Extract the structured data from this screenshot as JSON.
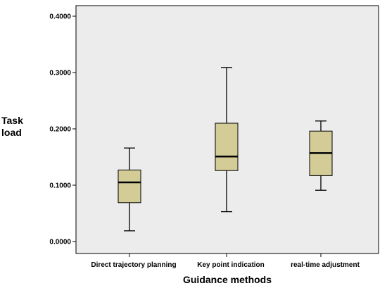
{
  "chart_data": {
    "type": "boxplot",
    "xlabel": "Guidance methods",
    "ylabel": [
      "Task",
      "load"
    ],
    "ylim": [
      -0.03,
      0.42
    ],
    "y_ticks": [
      0.0,
      0.1,
      0.2,
      0.3,
      0.4
    ],
    "y_tick_labels": [
      "0.0000",
      "0.1000",
      "0.2000",
      "0.3000",
      "0.4000"
    ],
    "grid": false,
    "categories": [
      "Direct trajectory planning",
      "Key point indication",
      "real-time adjustment"
    ],
    "boxes": [
      {
        "min": 0.019,
        "q1": 0.069,
        "median": 0.105,
        "q3": 0.127,
        "max": 0.166
      },
      {
        "min": 0.053,
        "q1": 0.126,
        "median": 0.151,
        "q3": 0.21,
        "max": 0.309
      },
      {
        "min": 0.091,
        "q1": 0.117,
        "median": 0.157,
        "q3": 0.196,
        "max": 0.214
      }
    ],
    "colors": {
      "plot_background": "#ececec",
      "box_fill": "#d3cc97",
      "stroke": "#000000"
    }
  }
}
